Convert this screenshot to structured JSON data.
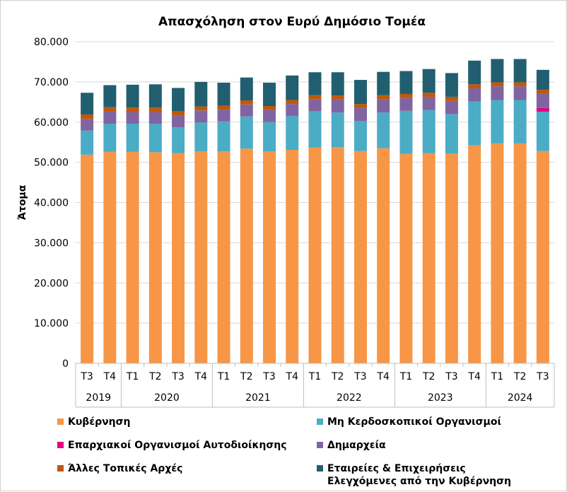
{
  "chart_data": {
    "type": "bar",
    "stacked": true,
    "title": "Απασχόληση στον Ευρύ Δημόσιο Τομέα",
    "ylabel": "Άτομα",
    "xlabel": "",
    "ylim": [
      0,
      80000
    ],
    "yticks": [
      "0",
      "10.000",
      "20.000",
      "30.000",
      "40.000",
      "50.000",
      "60.000",
      "70.000",
      "80.000"
    ],
    "grid": true,
    "legend_position": "bottom",
    "categories": [
      "Τ3",
      "Τ4",
      "Τ1",
      "Τ2",
      "Τ3",
      "Τ4",
      "Τ1",
      "Τ2",
      "Τ3",
      "Τ4",
      "Τ1",
      "Τ2",
      "Τ3",
      "Τ4",
      "Τ1",
      "Τ2",
      "Τ3",
      "Τ4",
      "Τ1",
      "Τ2",
      "Τ3"
    ],
    "year_groups": [
      {
        "year": "2019",
        "count": 2
      },
      {
        "year": "2020",
        "count": 4
      },
      {
        "year": "2021",
        "count": 4
      },
      {
        "year": "2022",
        "count": 4
      },
      {
        "year": "2023",
        "count": 4
      },
      {
        "year": "2024",
        "count": 3
      }
    ],
    "series": [
      {
        "name": "Κυβέρνηση",
        "color": "#f79646",
        "values": [
          51900,
          52600,
          52600,
          52500,
          52300,
          52700,
          52700,
          53400,
          52700,
          53100,
          53700,
          53800,
          52800,
          53500,
          52100,
          52300,
          52200,
          54200,
          54700,
          54700,
          52800
        ]
      },
      {
        "name": "Μη Κερδοσκοπικοί Οργανισμοί",
        "color": "#4bacc6",
        "values": [
          6000,
          7000,
          7000,
          7100,
          6400,
          7200,
          7500,
          8000,
          7300,
          8400,
          9000,
          8600,
          7500,
          8900,
          10700,
          10700,
          9800,
          10900,
          10800,
          10800,
          9800
        ]
      },
      {
        "name": "Επαρχιακοί Οργανισμοί Αυτοδιοίκησης",
        "color": "#e6007e",
        "values": [
          0,
          0,
          0,
          0,
          0,
          0,
          0,
          0,
          0,
          0,
          0,
          0,
          0,
          0,
          0,
          0,
          0,
          0,
          0,
          0,
          900
        ]
      },
      {
        "name": "Δημαρχεία",
        "color": "#8064a2",
        "values": [
          2900,
          3000,
          2900,
          2900,
          3000,
          3000,
          2900,
          3000,
          3000,
          3000,
          3000,
          3200,
          3200,
          3300,
          3200,
          3300,
          3300,
          3300,
          3400,
          3400,
          3500
        ]
      },
      {
        "name": "Άλλες Τοπικές Αρχές",
        "color": "#c0580a",
        "values": [
          1100,
          1100,
          1100,
          1100,
          1000,
          1000,
          1000,
          1000,
          1000,
          1000,
          1000,
          1000,
          1000,
          1000,
          1000,
          1000,
          1000,
          1000,
          1000,
          1000,
          1000
        ]
      },
      {
        "name": "Εταιρείες & Επιχειρήσεις Ελεγχόμενες από την Κυβέρνηση",
        "color": "#215f70",
        "values": [
          5400,
          5500,
          5700,
          5800,
          5800,
          6100,
          5700,
          5700,
          5800,
          6100,
          5700,
          5800,
          6000,
          5800,
          5700,
          5900,
          5900,
          5900,
          5800,
          5800,
          5000
        ]
      }
    ]
  },
  "legend": [
    {
      "label": "Κυβέρνηση",
      "color": "#f79646"
    },
    {
      "label": "Μη Κερδοσκοπικοί Οργανισμοί",
      "color": "#4bacc6"
    },
    {
      "label": "Επαρχιακοί Οργανισμοί Αυτοδιοίκησης",
      "color": "#e6007e"
    },
    {
      "label": "Δημαρχεία",
      "color": "#8064a2"
    },
    {
      "label": "Άλλες Τοπικές Αρχές",
      "color": "#c0580a"
    },
    {
      "label": "Εταιρείες & Επιχειρήσεις\nΕλεγχόμενες από την Κυβέρνηση",
      "color": "#215f70"
    }
  ]
}
